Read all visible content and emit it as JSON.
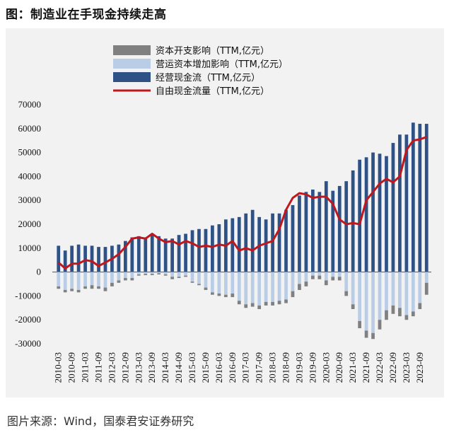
{
  "title": "图：制造业在手现金持续走高",
  "source": "图片来源：Wind，国泰君安证券研究",
  "chart_data": {
    "type": "bar",
    "ylim": [
      -30000,
      70000
    ],
    "yticks": [
      -30000,
      -20000,
      -10000,
      0,
      10000,
      20000,
      30000,
      40000,
      50000,
      60000,
      70000
    ],
    "x_tick_labels": [
      "2010-03",
      "2010-09",
      "2011-03",
      "2011-09",
      "2012-03",
      "2012-09",
      "2013-03",
      "2013-09",
      "2014-03",
      "2014-09",
      "2015-03",
      "2015-09",
      "2016-03",
      "2016-09",
      "2017-03",
      "2017-09",
      "2018-03",
      "2018-09",
      "2019-03",
      "2019-09",
      "2020-03",
      "2020-09",
      "2021-03",
      "2021-09",
      "2022-03",
      "2022-09",
      "2023-03",
      "2023-09"
    ],
    "legend": [
      {
        "label": "资本开支影响（TTM,亿元）",
        "color": "#808080",
        "kind": "bar"
      },
      {
        "label": "营运资本增加影响（TTM,亿元）",
        "color": "#b9cde6",
        "kind": "bar"
      },
      {
        "label": "经营现金流（TTM,亿元）",
        "color": "#2f5286",
        "kind": "bar"
      },
      {
        "label": "自由现金流量（TTM,亿元）",
        "color": "#c0161d",
        "kind": "line"
      }
    ],
    "series": [
      {
        "name": "经营现金流（TTM,亿元）",
        "values": [
          11000,
          9000,
          11000,
          11500,
          11000,
          11000,
          10500,
          10500,
          11000,
          11500,
          13000,
          14500,
          15000,
          14500,
          16000,
          15000,
          14000,
          14000,
          15500,
          16000,
          17500,
          18000,
          18000,
          19500,
          20000,
          22000,
          22500,
          23000,
          24500,
          26000,
          23000,
          22000,
          24500,
          24500,
          26000,
          28000,
          32000,
          33500,
          34500,
          33500,
          38000,
          34000,
          36000,
          38000,
          42500,
          47000,
          48000,
          50000,
          49500,
          48500,
          54000,
          57500,
          57500,
          62500,
          62000,
          62000
        ]
      },
      {
        "name": "营运资本增加影响（TTM,亿元）",
        "values": [
          -6000,
          -7500,
          -7000,
          -7500,
          -6000,
          -5500,
          -6000,
          -6500,
          -4500,
          -3500,
          -2500,
          -2500,
          -1000,
          -800,
          -800,
          -500,
          -1000,
          -2000,
          -2000,
          -1500,
          -4000,
          -5000,
          -6500,
          -8500,
          -9000,
          -9500,
          -9000,
          -12000,
          -13500,
          -13000,
          -14000,
          -12500,
          -12500,
          -12000,
          -11500,
          -8000,
          -5000,
          -4000,
          -1500,
          -1500,
          -3500,
          -2000,
          -2000,
          -8000,
          -13500,
          -20500,
          -24500,
          -25500,
          -20000,
          -16000,
          -14000,
          -15000,
          -18000,
          -16500,
          -13000,
          -4500
        ]
      },
      {
        "name": "资本开支影响（TTM,亿元）",
        "values": [
          -1000,
          -1000,
          -1000,
          -1000,
          -1000,
          -1500,
          -1000,
          -1500,
          -1500,
          -1000,
          -1000,
          -1000,
          -500,
          -500,
          -500,
          -500,
          -500,
          -1000,
          -500,
          -500,
          -500,
          -500,
          -1000,
          -1000,
          -1000,
          -1000,
          -1500,
          -1500,
          -1500,
          -1500,
          -1500,
          -1500,
          -1500,
          -1500,
          -1500,
          -2500,
          -2500,
          -2000,
          -1500,
          -1500,
          -2000,
          -1500,
          -1500,
          -2000,
          -2000,
          -3000,
          -3000,
          -2500,
          -4000,
          -4000,
          -3500,
          -3500,
          -2000,
          -2000,
          -2500,
          -5000
        ]
      },
      {
        "name": "自由现金流量（TTM,亿元）",
        "values": [
          4000,
          1500,
          3500,
          3500,
          5000,
          4500,
          2500,
          4000,
          5500,
          7500,
          10500,
          14000,
          14500,
          14000,
          16000,
          14000,
          12500,
          13000,
          11500,
          13000,
          12000,
          10500,
          11000,
          10500,
          11500,
          11000,
          13000,
          9000,
          10000,
          9000,
          11000,
          12000,
          13000,
          18000,
          26000,
          31000,
          33000,
          32500,
          31000,
          31500,
          31500,
          28500,
          22000,
          20000,
          20500,
          20000,
          30000,
          33500,
          37000,
          39000,
          37500,
          40000,
          51000,
          55000,
          55500,
          56500
        ]
      }
    ]
  }
}
